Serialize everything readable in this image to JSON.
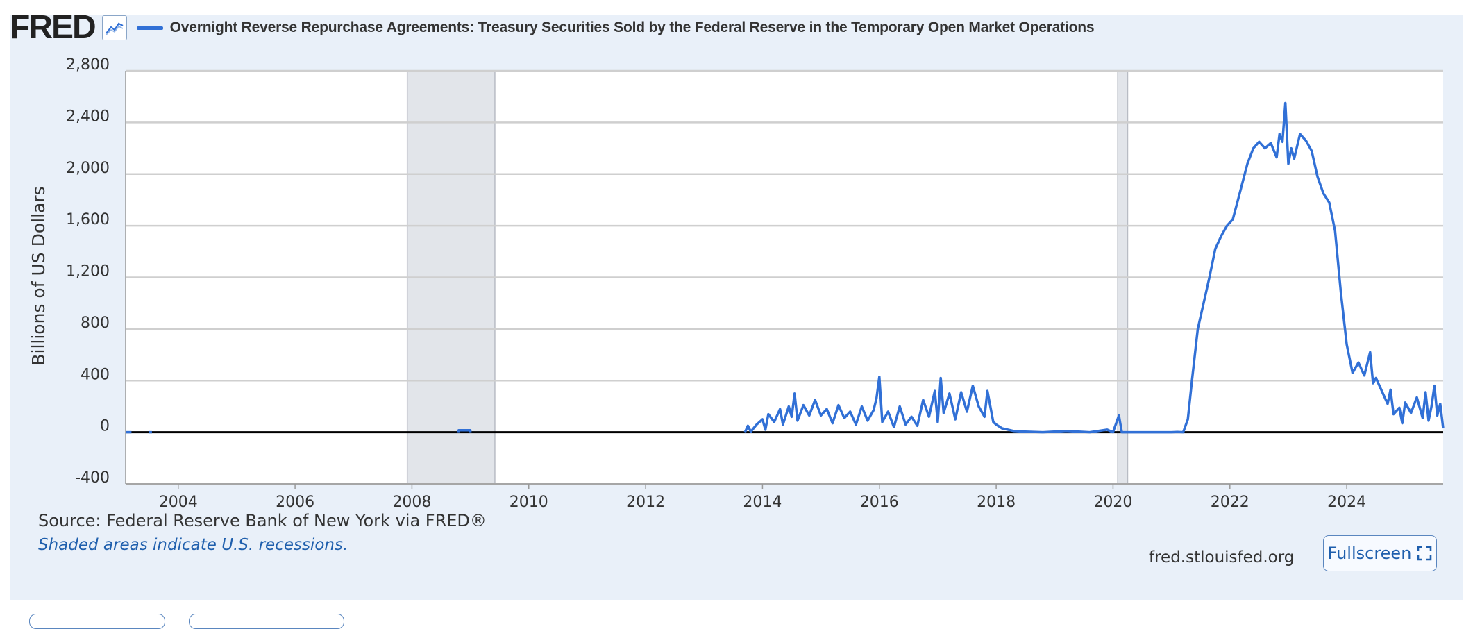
{
  "header": {
    "logo": "FRED",
    "series_title": "Overnight Reverse Repurchase Agreements: Treasury Securities Sold by the Federal Reserve in the Temporary Open Market Operations"
  },
  "footer": {
    "source": "Source: Federal Reserve Bank of New York via FRED®",
    "recession_note": "Shaded areas indicate U.S. recessions.",
    "site": "fred.stlouisfed.org",
    "fullscreen_label": "Fullscreen"
  },
  "colors": {
    "series": "#3170d6",
    "panel_bg": "#e9f0f9",
    "grid": "#cfcfcf",
    "recession": "#e2e5ea",
    "zero_line": "#000000"
  },
  "chart_data": {
    "type": "line",
    "title": "Overnight Reverse Repurchase Agreements: Treasury Securities Sold by the Federal Reserve in the Temporary Open Market Operations",
    "xlabel": "",
    "ylabel": "Billions of US Dollars",
    "xlim": [
      2003.1,
      2025.65
    ],
    "ylim": [
      -400,
      2800
    ],
    "y_ticks": [
      -400,
      0,
      400,
      800,
      1200,
      1600,
      2000,
      2400,
      2800
    ],
    "y_tick_labels": [
      "-400",
      "0",
      "400",
      "800",
      "1,200",
      "1,600",
      "2,000",
      "2,400",
      "2,800"
    ],
    "x_ticks": [
      2004,
      2006,
      2008,
      2010,
      2012,
      2014,
      2016,
      2018,
      2020,
      2022,
      2024
    ],
    "x_tick_labels": [
      "2004",
      "2006",
      "2008",
      "2010",
      "2012",
      "2014",
      "2016",
      "2018",
      "2020",
      "2022",
      "2024"
    ],
    "recessions": [
      [
        2007.92,
        2009.42
      ],
      [
        2020.08,
        2020.25
      ]
    ],
    "grid": true,
    "legend": "top-left",
    "series": [
      {
        "name": "Overnight Reverse Repurchase Agreements",
        "segments": [
          [
            [
              2003.1,
              0
            ],
            [
              2003.2,
              0
            ]
          ],
          [
            [
              2003.5,
              0
            ],
            [
              2003.55,
              0
            ]
          ],
          [
            [
              2008.8,
              0
            ],
            [
              2008.8,
              15
            ],
            [
              2009.0,
              15
            ],
            [
              2009.0,
              0
            ]
          ],
          [
            [
              2013.7,
              0
            ],
            [
              2013.75,
              50
            ],
            [
              2013.8,
              5
            ],
            [
              2013.9,
              60
            ],
            [
              2014.0,
              100
            ],
            [
              2014.05,
              20
            ],
            [
              2014.1,
              140
            ],
            [
              2014.2,
              80
            ],
            [
              2014.3,
              180
            ],
            [
              2014.35,
              60
            ],
            [
              2014.45,
              200
            ],
            [
              2014.5,
              120
            ],
            [
              2014.55,
              300
            ],
            [
              2014.6,
              90
            ],
            [
              2014.7,
              210
            ],
            [
              2014.8,
              130
            ],
            [
              2014.9,
              250
            ],
            [
              2015.0,
              130
            ],
            [
              2015.1,
              180
            ],
            [
              2015.2,
              70
            ],
            [
              2015.3,
              210
            ],
            [
              2015.4,
              110
            ],
            [
              2015.5,
              160
            ],
            [
              2015.6,
              60
            ],
            [
              2015.7,
              200
            ],
            [
              2015.8,
              90
            ],
            [
              2015.9,
              170
            ],
            [
              2015.95,
              260
            ],
            [
              2016.0,
              430
            ],
            [
              2016.05,
              80
            ],
            [
              2016.15,
              160
            ],
            [
              2016.25,
              40
            ],
            [
              2016.35,
              200
            ],
            [
              2016.45,
              60
            ],
            [
              2016.55,
              120
            ],
            [
              2016.65,
              50
            ],
            [
              2016.75,
              250
            ],
            [
              2016.85,
              120
            ],
            [
              2016.95,
              320
            ],
            [
              2017.0,
              80
            ],
            [
              2017.05,
              420
            ],
            [
              2017.1,
              150
            ],
            [
              2017.2,
              300
            ],
            [
              2017.3,
              100
            ],
            [
              2017.4,
              310
            ],
            [
              2017.5,
              160
            ],
            [
              2017.6,
              360
            ],
            [
              2017.7,
              200
            ],
            [
              2017.8,
              120
            ],
            [
              2017.85,
              320
            ],
            [
              2017.95,
              80
            ],
            [
              2018.0,
              60
            ],
            [
              2018.1,
              30
            ],
            [
              2018.3,
              10
            ],
            [
              2018.5,
              5
            ],
            [
              2018.8,
              0
            ],
            [
              2019.2,
              10
            ],
            [
              2019.6,
              0
            ],
            [
              2019.9,
              20
            ],
            [
              2020.0,
              0
            ],
            [
              2020.1,
              130
            ],
            [
              2020.15,
              0
            ],
            [
              2020.4,
              0
            ],
            [
              2021.0,
              0
            ],
            [
              2021.1,
              2
            ],
            [
              2021.2,
              0
            ],
            [
              2021.28,
              100
            ],
            [
              2021.35,
              400
            ],
            [
              2021.45,
              800
            ],
            [
              2021.55,
              1000
            ],
            [
              2021.65,
              1200
            ],
            [
              2021.75,
              1420
            ],
            [
              2021.85,
              1520
            ],
            [
              2021.95,
              1600
            ],
            [
              2022.05,
              1650
            ],
            [
              2022.15,
              1820
            ],
            [
              2022.3,
              2080
            ],
            [
              2022.4,
              2200
            ],
            [
              2022.5,
              2250
            ],
            [
              2022.6,
              2200
            ],
            [
              2022.7,
              2240
            ],
            [
              2022.8,
              2130
            ],
            [
              2022.85,
              2310
            ],
            [
              2022.9,
              2250
            ],
            [
              2022.95,
              2550
            ],
            [
              2023.0,
              2080
            ],
            [
              2023.05,
              2200
            ],
            [
              2023.1,
              2120
            ],
            [
              2023.2,
              2310
            ],
            [
              2023.3,
              2260
            ],
            [
              2023.4,
              2180
            ],
            [
              2023.5,
              1980
            ],
            [
              2023.6,
              1850
            ],
            [
              2023.7,
              1780
            ],
            [
              2023.8,
              1560
            ],
            [
              2023.9,
              1080
            ],
            [
              2024.0,
              680
            ],
            [
              2024.1,
              460
            ],
            [
              2024.2,
              540
            ],
            [
              2024.3,
              440
            ],
            [
              2024.4,
              620
            ],
            [
              2024.45,
              380
            ],
            [
              2024.5,
              420
            ],
            [
              2024.6,
              320
            ],
            [
              2024.7,
              220
            ],
            [
              2024.75,
              330
            ],
            [
              2024.8,
              140
            ],
            [
              2024.9,
              190
            ],
            [
              2024.95,
              70
            ],
            [
              2025.0,
              230
            ],
            [
              2025.1,
              150
            ],
            [
              2025.2,
              270
            ],
            [
              2025.3,
              110
            ],
            [
              2025.35,
              310
            ],
            [
              2025.4,
              90
            ],
            [
              2025.45,
              200
            ],
            [
              2025.5,
              360
            ],
            [
              2025.55,
              130
            ],
            [
              2025.6,
              220
            ],
            [
              2025.65,
              30
            ]
          ]
        ]
      }
    ]
  }
}
